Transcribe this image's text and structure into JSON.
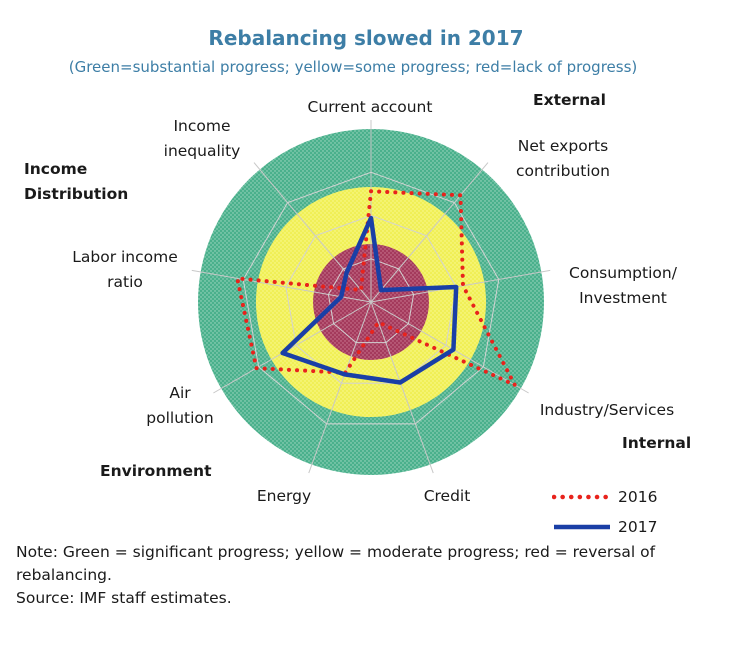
{
  "chart_data": {
    "type": "radar",
    "title": "Rebalancing slowed in 2017",
    "subtitle": "(Green=substantial progress; yellow=some progress; red=lack of progress)",
    "axes": [
      "Current account",
      "Net exports contribution",
      "Consumption/ Investment",
      "Industry/Services",
      "Credit",
      "Energy",
      "Air pollution",
      "Labor income ratio",
      "Income inequality"
    ],
    "axis_labels": [
      [
        "Current account"
      ],
      [
        "Net exports",
        "contribution"
      ],
      [
        "Consumption/",
        "Investment"
      ],
      [
        "Industry/Services"
      ],
      [
        "Credit"
      ],
      [
        "Energy"
      ],
      [
        "Air",
        "pollution"
      ],
      [
        "Labor income",
        "ratio"
      ],
      [
        "Income",
        "inequality"
      ]
    ],
    "scale": {
      "min": -1,
      "max": 1,
      "bands": [
        {
          "from": -1.0,
          "to": -0.33,
          "meaning": "red",
          "color": "#a43a5c"
        },
        {
          "from": -0.33,
          "to": 0.33,
          "meaning": "yellow",
          "color": "#f2f25a"
        },
        {
          "from": 0.33,
          "to": 1.0,
          "meaning": "green",
          "color": "#4ab08c"
        }
      ]
    },
    "series": [
      {
        "name": "2016",
        "color": "#e8231c",
        "style": "dotted",
        "values": [
          0.28,
          0.61,
          0.08,
          0.92,
          -0.75,
          -0.13,
          0.53,
          0.57,
          -0.82
        ]
      },
      {
        "name": "2017",
        "color": "#1a3fa6",
        "style": "solid",
        "values": [
          -0.03,
          -0.82,
          0.0,
          0.1,
          -0.01,
          -0.11,
          0.18,
          -0.65,
          -0.56
        ]
      }
    ],
    "groups": [
      "External",
      "Internal",
      "Environment",
      "Income Distribution"
    ],
    "grid": true,
    "legend_position": "bottom-right"
  },
  "groups": {
    "external": "External",
    "internal": "Internal",
    "environment": "Environment",
    "income_1": "Income",
    "income_2": "Distribution"
  },
  "note": {
    "line1": "Note: Green = significant progress; yellow = moderate progress; red = reversal of rebalancing.",
    "line2": "Source: IMF staff estimates."
  }
}
